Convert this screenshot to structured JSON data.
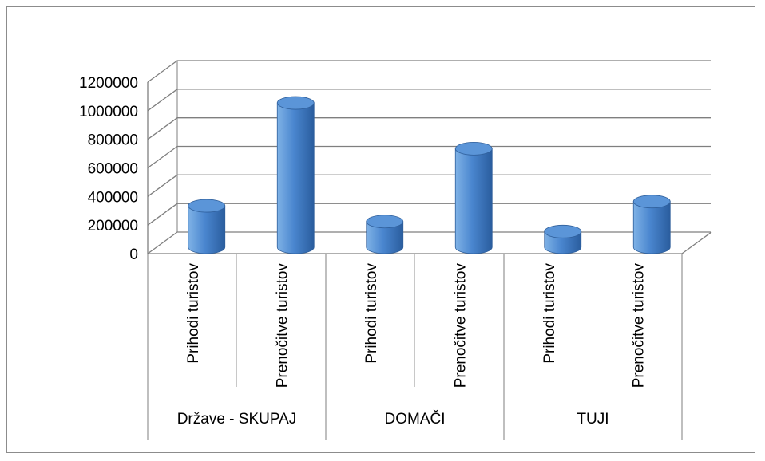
{
  "chart_data": {
    "type": "bar",
    "style": "3d-cylinder",
    "groups": [
      "Države - SKUPAJ",
      "DOMAČI",
      "TUJI"
    ],
    "categories": [
      "Prihodi turistov",
      "Prenočitve turistov",
      "Prihodi turistov",
      "Prenočitve turistov",
      "Prihodi turistov",
      "Prenočitve turistov"
    ],
    "values": [
      290000,
      1010000,
      180000,
      690000,
      110000,
      320000
    ],
    "ylim": [
      0,
      1200000
    ],
    "yticks": [
      "0",
      "200000",
      "400000",
      "600000",
      "800000",
      "1000000",
      "1200000"
    ],
    "grid": true,
    "legend": "none",
    "colors": {
      "bar_light": "#7fb2e6",
      "bar_mid": "#4a86cf",
      "bar_dark": "#2a5d9e",
      "bar_top": "#5b95d8",
      "grid": "#7f7f7f"
    }
  }
}
